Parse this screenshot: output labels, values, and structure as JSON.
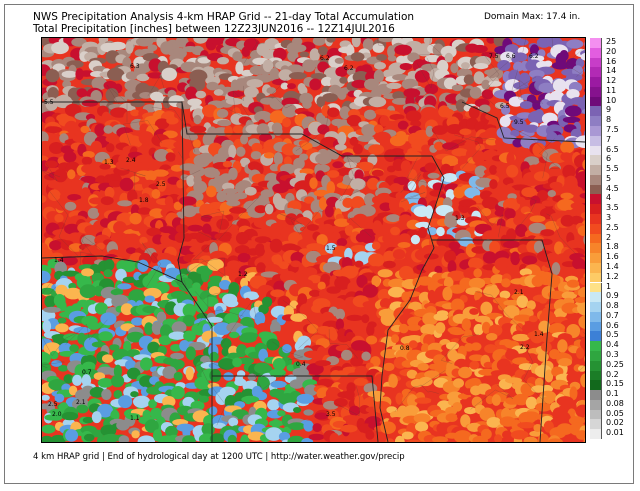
{
  "header": {
    "title_line1": "NWS Precipitation Analysis 4-km HRAP Grid -- 21-day Total Accumulation",
    "title_line2": "Total Precipitation [inches] between 12Z23JUN2016 -- 12Z14JUL2016",
    "domain_max": "Domain Max: 17.4 in."
  },
  "footer": {
    "text": "4 km HRAP grid | End of hydrological day at 1200 UTC | http://water.weather.gov/precip"
  },
  "legend": {
    "items": [
      {
        "label": "25",
        "color": "#f48ff0"
      },
      {
        "label": "20",
        "color": "#e25de0"
      },
      {
        "label": "16",
        "color": "#c73dc8"
      },
      {
        "label": "14",
        "color": "#b22ab5"
      },
      {
        "label": "12",
        "color": "#9b1aa2"
      },
      {
        "label": "11",
        "color": "#86128e"
      },
      {
        "label": "10",
        "color": "#6f0a79"
      },
      {
        "label": "9",
        "color": "#7b63b3"
      },
      {
        "label": "8",
        "color": "#8e7ec3"
      },
      {
        "label": "7.5",
        "color": "#a998d4"
      },
      {
        "label": "7",
        "color": "#c7bde4"
      },
      {
        "label": "6.5",
        "color": "#e8e2ef"
      },
      {
        "label": "6",
        "color": "#d9cfc9"
      },
      {
        "label": "5.5",
        "color": "#c2aea4"
      },
      {
        "label": "5",
        "color": "#a8877c"
      },
      {
        "label": "4.5",
        "color": "#8b5e52"
      },
      {
        "label": "4",
        "color": "#c8102e"
      },
      {
        "label": "3.5",
        "color": "#d81f1f"
      },
      {
        "label": "3",
        "color": "#e83420"
      },
      {
        "label": "2.5",
        "color": "#f14b1f"
      },
      {
        "label": "2",
        "color": "#f5691f"
      },
      {
        "label": "1.8",
        "color": "#f7842a"
      },
      {
        "label": "1.6",
        "color": "#f99d3a"
      },
      {
        "label": "1.4",
        "color": "#fbb54f"
      },
      {
        "label": "1.2",
        "color": "#fdcb66"
      },
      {
        "label": "1",
        "color": "#fee187"
      },
      {
        "label": "0.9",
        "color": "#c9e8f5"
      },
      {
        "label": "0.8",
        "color": "#a5d3f0"
      },
      {
        "label": "0.7",
        "color": "#7fb9ea"
      },
      {
        "label": "0.6",
        "color": "#5a9de2"
      },
      {
        "label": "0.5",
        "color": "#3c80d6"
      },
      {
        "label": "0.4",
        "color": "#36b84b"
      },
      {
        "label": "0.3",
        "color": "#2fa640"
      },
      {
        "label": "0.25",
        "color": "#259233"
      },
      {
        "label": "0.2",
        "color": "#1b7d27"
      },
      {
        "label": "0.15",
        "color": "#12691c"
      },
      {
        "label": "0.1",
        "color": "#8c8c8c"
      },
      {
        "label": "0.08",
        "color": "#a5a5a5"
      },
      {
        "label": "0.05",
        "color": "#bdbdbd"
      },
      {
        "label": "0.02",
        "color": "#d6d6d6"
      },
      {
        "label": "0.01",
        "color": "#ededed"
      }
    ]
  },
  "map": {
    "point_labels": [
      {
        "text": "6.3",
        "value": 6.3
      },
      {
        "text": "6.2",
        "value": 6.2
      },
      {
        "text": "7.5",
        "value": 7.5
      },
      {
        "text": "6.6",
        "value": 6.6
      },
      {
        "text": "6.2",
        "value": 6.2
      },
      {
        "text": "6.2",
        "value": 6.2
      },
      {
        "text": "5.5",
        "value": 5.5
      },
      {
        "text": "6.5",
        "value": 6.5
      },
      {
        "text": "9.5",
        "value": 9.5
      },
      {
        "text": "1.3",
        "value": 1.3
      },
      {
        "text": "2.4",
        "value": 2.4
      },
      {
        "text": "2.5",
        "value": 2.5
      },
      {
        "text": "1.3",
        "value": 1.3
      },
      {
        "text": "1.8",
        "value": 1.8
      },
      {
        "text": "1.4",
        "value": 1.4
      },
      {
        "text": "1.2",
        "value": 1.2
      },
      {
        "text": "1.5",
        "value": 1.5
      },
      {
        "text": "2.1",
        "value": 2.1
      },
      {
        "text": "1.4",
        "value": 1.4
      },
      {
        "text": "2.2",
        "value": 2.2
      },
      {
        "text": "0.8",
        "value": 0.8
      },
      {
        "text": "0.4",
        "value": 0.4
      },
      {
        "text": "0.7",
        "value": 0.7
      },
      {
        "text": "1.1",
        "value": 1.1
      },
      {
        "text": "3.5",
        "value": 3.5
      },
      {
        "text": "2.5",
        "value": 2.5
      },
      {
        "text": "2.0",
        "value": 2.0
      },
      {
        "text": "2.1",
        "value": 2.1
      }
    ]
  }
}
